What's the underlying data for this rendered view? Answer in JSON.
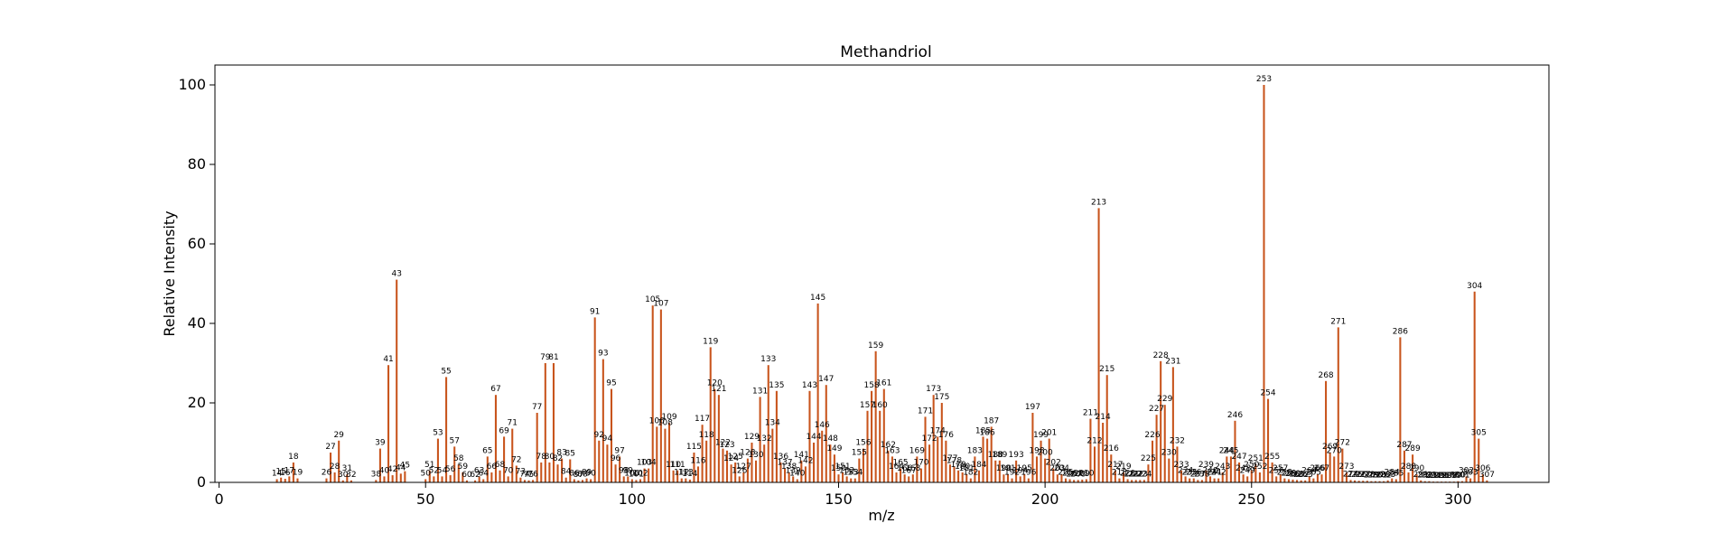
{
  "chart_data": {
    "type": "bar",
    "title": "Methandriol",
    "xlabel": "m/z",
    "ylabel": "Relative Intensity",
    "xlim": [
      -1,
      322
    ],
    "ylim": [
      0,
      105
    ],
    "xticks": [
      0,
      50,
      100,
      150,
      200,
      250,
      300
    ],
    "yticks": [
      0,
      20,
      40,
      60,
      80,
      100
    ],
    "grid": false,
    "legend": "none",
    "bar_color": "#c8541c",
    "points": [
      {
        "x": 14,
        "y": 0.8
      },
      {
        "x": 15,
        "y": 1.2
      },
      {
        "x": 16,
        "y": 0.9
      },
      {
        "x": 17,
        "y": 1.5
      },
      {
        "x": 18,
        "y": 5.0
      },
      {
        "x": 19,
        "y": 1.0
      },
      {
        "x": 26,
        "y": 1.0
      },
      {
        "x": 27,
        "y": 7.5
      },
      {
        "x": 28,
        "y": 2.5
      },
      {
        "x": 29,
        "y": 10.5
      },
      {
        "x": 30,
        "y": 0.5
      },
      {
        "x": 31,
        "y": 2.0
      },
      {
        "x": 32,
        "y": 0.5
      },
      {
        "x": 38,
        "y": 0.6
      },
      {
        "x": 39,
        "y": 8.5
      },
      {
        "x": 40,
        "y": 1.5
      },
      {
        "x": 41,
        "y": 29.5
      },
      {
        "x": 42,
        "y": 1.8
      },
      {
        "x": 43,
        "y": 51.0
      },
      {
        "x": 44,
        "y": 2.2
      },
      {
        "x": 45,
        "y": 2.8
      },
      {
        "x": 50,
        "y": 0.8
      },
      {
        "x": 51,
        "y": 3.0
      },
      {
        "x": 52,
        "y": 1.5
      },
      {
        "x": 53,
        "y": 11.0
      },
      {
        "x": 54,
        "y": 1.5
      },
      {
        "x": 55,
        "y": 26.5
      },
      {
        "x": 56,
        "y": 1.8
      },
      {
        "x": 57,
        "y": 9.0
      },
      {
        "x": 58,
        "y": 4.5
      },
      {
        "x": 59,
        "y": 2.5
      },
      {
        "x": 60,
        "y": 0.5
      },
      {
        "x": 62,
        "y": 0.5
      },
      {
        "x": 63,
        "y": 1.5
      },
      {
        "x": 64,
        "y": 0.8
      },
      {
        "x": 65,
        "y": 6.5
      },
      {
        "x": 66,
        "y": 2.5
      },
      {
        "x": 67,
        "y": 22.0
      },
      {
        "x": 68,
        "y": 3.0
      },
      {
        "x": 69,
        "y": 11.5
      },
      {
        "x": 70,
        "y": 1.5
      },
      {
        "x": 71,
        "y": 13.5
      },
      {
        "x": 72,
        "y": 4.2
      },
      {
        "x": 73,
        "y": 1.2
      },
      {
        "x": 74,
        "y": 0.6
      },
      {
        "x": 75,
        "y": 0.5
      },
      {
        "x": 76,
        "y": 0.6
      },
      {
        "x": 77,
        "y": 17.5
      },
      {
        "x": 78,
        "y": 5.0
      },
      {
        "x": 79,
        "y": 30.0
      },
      {
        "x": 80,
        "y": 5.0
      },
      {
        "x": 81,
        "y": 30.0
      },
      {
        "x": 82,
        "y": 4.5
      },
      {
        "x": 83,
        "y": 6.0
      },
      {
        "x": 84,
        "y": 1.2
      },
      {
        "x": 85,
        "y": 5.8
      },
      {
        "x": 86,
        "y": 0.8
      },
      {
        "x": 87,
        "y": 0.5
      },
      {
        "x": 88,
        "y": 0.6
      },
      {
        "x": 89,
        "y": 1.0
      },
      {
        "x": 90,
        "y": 0.8
      },
      {
        "x": 91,
        "y": 41.5
      },
      {
        "x": 92,
        "y": 10.5
      },
      {
        "x": 93,
        "y": 31.0
      },
      {
        "x": 94,
        "y": 9.5
      },
      {
        "x": 95,
        "y": 23.5
      },
      {
        "x": 96,
        "y": 4.5
      },
      {
        "x": 97,
        "y": 6.5
      },
      {
        "x": 98,
        "y": 1.5
      },
      {
        "x": 99,
        "y": 1.5
      },
      {
        "x": 100,
        "y": 0.8
      },
      {
        "x": 101,
        "y": 0.6
      },
      {
        "x": 102,
        "y": 0.8
      },
      {
        "x": 103,
        "y": 3.5
      },
      {
        "x": 104,
        "y": 3.5
      },
      {
        "x": 105,
        "y": 44.5
      },
      {
        "x": 106,
        "y": 14.0
      },
      {
        "x": 107,
        "y": 43.5
      },
      {
        "x": 108,
        "y": 13.5
      },
      {
        "x": 109,
        "y": 15.0
      },
      {
        "x": 110,
        "y": 3.0
      },
      {
        "x": 111,
        "y": 3.0
      },
      {
        "x": 112,
        "y": 1.0
      },
      {
        "x": 113,
        "y": 1.0
      },
      {
        "x": 114,
        "y": 0.7
      },
      {
        "x": 115,
        "y": 7.5
      },
      {
        "x": 116,
        "y": 4.0
      },
      {
        "x": 117,
        "y": 14.5
      },
      {
        "x": 118,
        "y": 10.5
      },
      {
        "x": 119,
        "y": 34.0
      },
      {
        "x": 120,
        "y": 23.5
      },
      {
        "x": 121,
        "y": 22.0
      },
      {
        "x": 122,
        "y": 8.5
      },
      {
        "x": 123,
        "y": 8.0
      },
      {
        "x": 124,
        "y": 4.5
      },
      {
        "x": 125,
        "y": 5.0
      },
      {
        "x": 126,
        "y": 1.5
      },
      {
        "x": 127,
        "y": 2.5
      },
      {
        "x": 128,
        "y": 6.0
      },
      {
        "x": 129,
        "y": 10.0
      },
      {
        "x": 130,
        "y": 5.5
      },
      {
        "x": 131,
        "y": 21.5
      },
      {
        "x": 132,
        "y": 9.5
      },
      {
        "x": 133,
        "y": 29.5
      },
      {
        "x": 134,
        "y": 13.5
      },
      {
        "x": 135,
        "y": 23.0
      },
      {
        "x": 136,
        "y": 5.0
      },
      {
        "x": 137,
        "y": 3.5
      },
      {
        "x": 138,
        "y": 2.5
      },
      {
        "x": 139,
        "y": 1.5
      },
      {
        "x": 140,
        "y": 0.8
      },
      {
        "x": 141,
        "y": 5.5
      },
      {
        "x": 142,
        "y": 4.0
      },
      {
        "x": 143,
        "y": 23.0
      },
      {
        "x": 144,
        "y": 10.0
      },
      {
        "x": 145,
        "y": 45.0
      },
      {
        "x": 146,
        "y": 13.0
      },
      {
        "x": 147,
        "y": 24.5
      },
      {
        "x": 148,
        "y": 9.5
      },
      {
        "x": 149,
        "y": 7.0
      },
      {
        "x": 150,
        "y": 2.0
      },
      {
        "x": 151,
        "y": 2.5
      },
      {
        "x": 152,
        "y": 1.5
      },
      {
        "x": 153,
        "y": 1.0
      },
      {
        "x": 154,
        "y": 1.0
      },
      {
        "x": 155,
        "y": 6.0
      },
      {
        "x": 156,
        "y": 8.5
      },
      {
        "x": 157,
        "y": 18.0
      },
      {
        "x": 158,
        "y": 23.0
      },
      {
        "x": 159,
        "y": 33.0
      },
      {
        "x": 160,
        "y": 18.0
      },
      {
        "x": 161,
        "y": 23.5
      },
      {
        "x": 162,
        "y": 8.0
      },
      {
        "x": 163,
        "y": 6.5
      },
      {
        "x": 164,
        "y": 2.5
      },
      {
        "x": 165,
        "y": 3.5
      },
      {
        "x": 166,
        "y": 2.0
      },
      {
        "x": 167,
        "y": 1.5
      },
      {
        "x": 168,
        "y": 2.0
      },
      {
        "x": 169,
        "y": 6.5
      },
      {
        "x": 170,
        "y": 3.5
      },
      {
        "x": 171,
        "y": 16.5
      },
      {
        "x": 172,
        "y": 9.5
      },
      {
        "x": 173,
        "y": 22.0
      },
      {
        "x": 174,
        "y": 11.5
      },
      {
        "x": 175,
        "y": 20.0
      },
      {
        "x": 176,
        "y": 10.5
      },
      {
        "x": 177,
        "y": 4.5
      },
      {
        "x": 178,
        "y": 4.0
      },
      {
        "x": 179,
        "y": 3.0
      },
      {
        "x": 180,
        "y": 2.5
      },
      {
        "x": 181,
        "y": 2.0
      },
      {
        "x": 182,
        "y": 1.0
      },
      {
        "x": 183,
        "y": 6.5
      },
      {
        "x": 184,
        "y": 3.0
      },
      {
        "x": 185,
        "y": 11.5
      },
      {
        "x": 186,
        "y": 11.0
      },
      {
        "x": 187,
        "y": 14.0
      },
      {
        "x": 188,
        "y": 5.5
      },
      {
        "x": 189,
        "y": 5.5
      },
      {
        "x": 190,
        "y": 2.0
      },
      {
        "x": 191,
        "y": 2.0
      },
      {
        "x": 192,
        "y": 1.0
      },
      {
        "x": 193,
        "y": 5.5
      },
      {
        "x": 194,
        "y": 1.5
      },
      {
        "x": 195,
        "y": 2.0
      },
      {
        "x": 196,
        "y": 1.0
      },
      {
        "x": 197,
        "y": 17.5
      },
      {
        "x": 198,
        "y": 6.5
      },
      {
        "x": 199,
        "y": 10.5
      },
      {
        "x": 200,
        "y": 6.0
      },
      {
        "x": 201,
        "y": 11.0
      },
      {
        "x": 202,
        "y": 3.5
      },
      {
        "x": 203,
        "y": 2.0
      },
      {
        "x": 204,
        "y": 2.0
      },
      {
        "x": 205,
        "y": 1.0
      },
      {
        "x": 206,
        "y": 0.8
      },
      {
        "x": 207,
        "y": 0.6
      },
      {
        "x": 208,
        "y": 0.6
      },
      {
        "x": 209,
        "y": 0.7
      },
      {
        "x": 210,
        "y": 0.8
      },
      {
        "x": 211,
        "y": 16.0
      },
      {
        "x": 212,
        "y": 9.0
      },
      {
        "x": 213,
        "y": 69.0
      },
      {
        "x": 214,
        "y": 15.0
      },
      {
        "x": 215,
        "y": 27.0
      },
      {
        "x": 216,
        "y": 7.0
      },
      {
        "x": 217,
        "y": 3.0
      },
      {
        "x": 218,
        "y": 1.0
      },
      {
        "x": 219,
        "y": 2.5
      },
      {
        "x": 220,
        "y": 0.8
      },
      {
        "x": 221,
        "y": 0.6
      },
      {
        "x": 222,
        "y": 0.6
      },
      {
        "x": 223,
        "y": 0.6
      },
      {
        "x": 224,
        "y": 0.6
      },
      {
        "x": 225,
        "y": 4.5
      },
      {
        "x": 226,
        "y": 10.5
      },
      {
        "x": 227,
        "y": 17.0
      },
      {
        "x": 228,
        "y": 30.5
      },
      {
        "x": 229,
        "y": 19.5
      },
      {
        "x": 230,
        "y": 6.0
      },
      {
        "x": 231,
        "y": 29.0
      },
      {
        "x": 232,
        "y": 9.0
      },
      {
        "x": 233,
        "y": 3.0
      },
      {
        "x": 234,
        "y": 1.5
      },
      {
        "x": 235,
        "y": 1.0
      },
      {
        "x": 236,
        "y": 1.0
      },
      {
        "x": 237,
        "y": 0.6
      },
      {
        "x": 238,
        "y": 0.6
      },
      {
        "x": 239,
        "y": 3.0
      },
      {
        "x": 240,
        "y": 1.5
      },
      {
        "x": 241,
        "y": 1.0
      },
      {
        "x": 242,
        "y": 1.0
      },
      {
        "x": 243,
        "y": 2.5
      },
      {
        "x": 244,
        "y": 6.5
      },
      {
        "x": 245,
        "y": 6.5
      },
      {
        "x": 246,
        "y": 15.5
      },
      {
        "x": 247,
        "y": 5.0
      },
      {
        "x": 248,
        "y": 2.0
      },
      {
        "x": 249,
        "y": 1.5
      },
      {
        "x": 250,
        "y": 3.0
      },
      {
        "x": 251,
        "y": 4.5
      },
      {
        "x": 252,
        "y": 2.5
      },
      {
        "x": 253,
        "y": 100.0
      },
      {
        "x": 254,
        "y": 21.0
      },
      {
        "x": 255,
        "y": 5.0
      },
      {
        "x": 256,
        "y": 1.5
      },
      {
        "x": 257,
        "y": 2.0
      },
      {
        "x": 258,
        "y": 1.0
      },
      {
        "x": 259,
        "y": 0.8
      },
      {
        "x": 260,
        "y": 0.7
      },
      {
        "x": 261,
        "y": 0.6
      },
      {
        "x": 262,
        "y": 0.5
      },
      {
        "x": 263,
        "y": 0.5
      },
      {
        "x": 264,
        "y": 1.5
      },
      {
        "x": 265,
        "y": 1.0
      },
      {
        "x": 266,
        "y": 2.0
      },
      {
        "x": 267,
        "y": 2.0
      },
      {
        "x": 268,
        "y": 25.5
      },
      {
        "x": 269,
        "y": 7.5
      },
      {
        "x": 270,
        "y": 6.5
      },
      {
        "x": 271,
        "y": 39.0
      },
      {
        "x": 272,
        "y": 8.5
      },
      {
        "x": 273,
        "y": 2.5
      },
      {
        "x": 274,
        "y": 0.6
      },
      {
        "x": 275,
        "y": 0.5
      },
      {
        "x": 276,
        "y": 0.4
      },
      {
        "x": 277,
        "y": 0.4
      },
      {
        "x": 278,
        "y": 0.4
      },
      {
        "x": 279,
        "y": 0.3
      },
      {
        "x": 280,
        "y": 0.3
      },
      {
        "x": 281,
        "y": 0.3
      },
      {
        "x": 282,
        "y": 0.3
      },
      {
        "x": 283,
        "y": 0.5
      },
      {
        "x": 284,
        "y": 1.0
      },
      {
        "x": 285,
        "y": 0.8
      },
      {
        "x": 286,
        "y": 36.5
      },
      {
        "x": 287,
        "y": 8.0
      },
      {
        "x": 288,
        "y": 2.5
      },
      {
        "x": 289,
        "y": 7.0
      },
      {
        "x": 290,
        "y": 2.0
      },
      {
        "x": 291,
        "y": 0.5
      },
      {
        "x": 292,
        "y": 0.3
      },
      {
        "x": 293,
        "y": 0.3
      },
      {
        "x": 294,
        "y": 0.2
      },
      {
        "x": 295,
        "y": 0.2
      },
      {
        "x": 296,
        "y": 0.2
      },
      {
        "x": 297,
        "y": 0.2
      },
      {
        "x": 298,
        "y": 0.2
      },
      {
        "x": 299,
        "y": 0.2
      },
      {
        "x": 300,
        "y": 0.3
      },
      {
        "x": 301,
        "y": 0.3
      },
      {
        "x": 302,
        "y": 1.5
      },
      {
        "x": 303,
        "y": 1.0
      },
      {
        "x": 304,
        "y": 48.0
      },
      {
        "x": 305,
        "y": 11.0
      },
      {
        "x": 306,
        "y": 2.0
      },
      {
        "x": 307,
        "y": 0.5
      }
    ]
  }
}
